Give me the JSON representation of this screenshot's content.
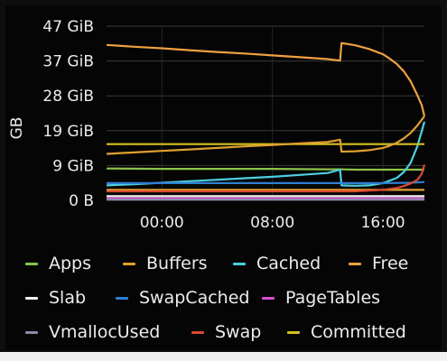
{
  "chart_data": {
    "type": "line",
    "ylabel": "GB",
    "y_ticks": [
      "0 B",
      "9 GiB",
      "19 GiB",
      "28 GiB",
      "37 GiB",
      "47 GiB"
    ],
    "y_tick_values": [
      0,
      9.3,
      18.6,
      27.9,
      37.2,
      46.5
    ],
    "x_ticks": [
      "00:00",
      "08:00",
      "16:00"
    ],
    "x_tick_values": [
      0,
      8,
      16
    ],
    "xlim": [
      -4,
      19
    ],
    "ylim": [
      0,
      46.5
    ],
    "grid": true,
    "legend_placement": "bottom",
    "series": [
      {
        "name": "Apps",
        "color": "#8bc34a",
        "x": [
          -4,
          0,
          4,
          8,
          12,
          13,
          14,
          16,
          18,
          19
        ],
        "y": [
          8.5,
          8.4,
          8.4,
          8.4,
          8.3,
          8.3,
          8.2,
          8.2,
          8.2,
          8.2
        ]
      },
      {
        "name": "Buffers",
        "color": "#e0a030",
        "x": [
          -4,
          0,
          4,
          8,
          12,
          13,
          14,
          16,
          18,
          19
        ],
        "y": [
          2.8,
          2.8,
          2.8,
          2.8,
          2.8,
          2.8,
          2.8,
          2.8,
          2.8,
          2.8
        ]
      },
      {
        "name": "Cached",
        "color": "#4dd0e1",
        "x": [
          -4,
          -2,
          0,
          2,
          4,
          6,
          8,
          10,
          12,
          12.9,
          13,
          14,
          15,
          16,
          17,
          17.5,
          18,
          18.5,
          19
        ],
        "y": [
          4.0,
          4.3,
          4.7,
          5.1,
          5.5,
          5.9,
          6.3,
          6.8,
          7.3,
          8.2,
          4.0,
          3.9,
          4.0,
          4.6,
          6.0,
          7.5,
          10.0,
          14.5,
          21.0
        ]
      },
      {
        "name": "Free",
        "color": "#f0a040",
        "x": [
          -4,
          -2,
          0,
          2,
          4,
          6,
          8,
          10,
          12,
          12.9,
          13,
          14,
          15,
          16,
          16.5,
          17,
          17.5,
          18,
          18.5,
          18.8,
          19
        ],
        "y": [
          41.5,
          41.0,
          40.6,
          40.1,
          39.6,
          39.2,
          38.7,
          38.2,
          37.7,
          37.3,
          42.0,
          41.4,
          40.4,
          39.0,
          37.8,
          36.4,
          34.5,
          31.8,
          28.0,
          25.5,
          22.5
        ]
      },
      {
        "name": "Slab",
        "color": "#f5f5f5",
        "x": [
          -4,
          0,
          4,
          8,
          12,
          16,
          19
        ],
        "y": [
          1.1,
          1.1,
          1.1,
          1.1,
          1.1,
          1.1,
          1.1
        ]
      },
      {
        "name": "SwapCached",
        "color": "#2f7fd0",
        "x": [
          -4,
          0,
          4,
          8,
          12,
          16,
          18,
          19
        ],
        "y": [
          4.6,
          4.6,
          4.6,
          4.6,
          4.6,
          4.6,
          4.7,
          4.9
        ]
      },
      {
        "name": "PageTables",
        "color": "#d84fd0",
        "x": [
          -4,
          0,
          4,
          8,
          12,
          16,
          19
        ],
        "y": [
          0.5,
          0.5,
          0.5,
          0.5,
          0.5,
          0.5,
          0.5
        ]
      },
      {
        "name": "VmallocUsed",
        "color": "#8a8aa8",
        "x": [
          -4,
          0,
          4,
          8,
          12,
          16,
          19
        ],
        "y": [
          0.2,
          0.2,
          0.2,
          0.2,
          0.2,
          0.2,
          0.2
        ]
      },
      {
        "name": "Swap",
        "color": "#d84a30",
        "x": [
          -4,
          0,
          4,
          8,
          12,
          14,
          15,
          16,
          17,
          17.5,
          18,
          18.5,
          18.8,
          19
        ],
        "y": [
          2.4,
          2.4,
          2.4,
          2.4,
          2.4,
          2.4,
          2.6,
          2.8,
          3.3,
          3.8,
          4.5,
          5.5,
          7.0,
          9.5
        ]
      },
      {
        "name": "Committed",
        "color": "#d4c020",
        "x": [
          -4,
          0,
          4,
          8,
          12,
          16,
          19
        ],
        "y": [
          15.0,
          15.0,
          15.0,
          15.0,
          15.0,
          15.0,
          15.0
        ]
      },
      {
        "name": "",
        "color": "#e0a030",
        "x": [
          -4,
          -2,
          0,
          2,
          4,
          6,
          8,
          10,
          12,
          12.9,
          13,
          14,
          15,
          16,
          16.5,
          17,
          17.5,
          18,
          18.5,
          19
        ],
        "y": [
          12.4,
          12.8,
          13.2,
          13.6,
          14.0,
          14.4,
          14.8,
          15.2,
          15.6,
          16.2,
          13.0,
          13.1,
          13.4,
          14.0,
          14.6,
          15.4,
          16.5,
          18.0,
          20.0,
          22.5
        ]
      }
    ]
  }
}
